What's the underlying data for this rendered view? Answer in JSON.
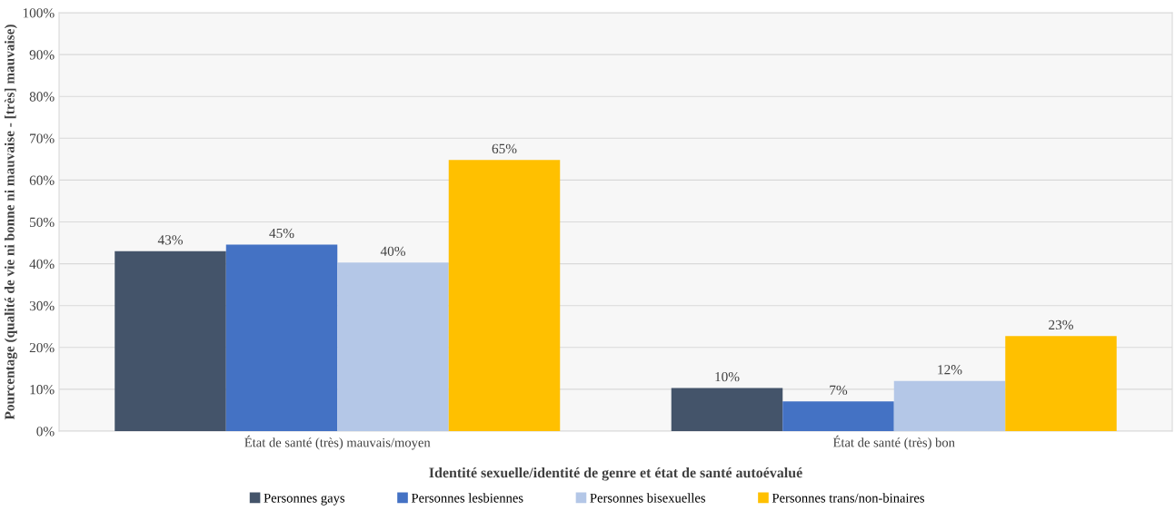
{
  "chart_data": {
    "type": "bar",
    "xlabel": "Identité sexuelle/identité de genre et état de santé autoévalué",
    "ylabel": "Pourcentage (qualité de vie ni bonne ni mauvaise - [très] mauvaise)",
    "categories": [
      "État de santé (très) mauvais/moyen",
      "État de santé (très) bon"
    ],
    "series": [
      {
        "name": "Personnes gays",
        "color": "#44546a",
        "values": [
          43.0,
          10.3
        ],
        "value_labels": [
          "43%",
          "10%"
        ]
      },
      {
        "name": "Personnes lesbiennes",
        "color": "#4472c4",
        "values": [
          44.6,
          7.1
        ],
        "value_labels": [
          "45%",
          "7%"
        ]
      },
      {
        "name": "Personnes bisexuelles",
        "color": "#b4c7e7",
        "values": [
          40.3,
          12.0
        ],
        "value_labels": [
          "40%",
          "12%"
        ]
      },
      {
        "name": "Personnes trans/non-binaires",
        "color": "#ffc000",
        "values": [
          64.8,
          22.7
        ],
        "value_labels": [
          "65%",
          "23%"
        ]
      }
    ],
    "ylim": [
      0,
      100
    ],
    "yticks": [
      {
        "value": 0,
        "label": "0%"
      },
      {
        "value": 10,
        "label": "10%"
      },
      {
        "value": 20,
        "label": "20%"
      },
      {
        "value": 30,
        "label": "30%"
      },
      {
        "value": 40,
        "label": "40%"
      },
      {
        "value": 50,
        "label": "50%"
      },
      {
        "value": 60,
        "label": "60%"
      },
      {
        "value": 70,
        "label": "70%"
      },
      {
        "value": 80,
        "label": "80%"
      },
      {
        "value": 90,
        "label": "90%"
      },
      {
        "value": 100,
        "label": "100%"
      }
    ],
    "grid": "y",
    "legend": "bottom"
  }
}
